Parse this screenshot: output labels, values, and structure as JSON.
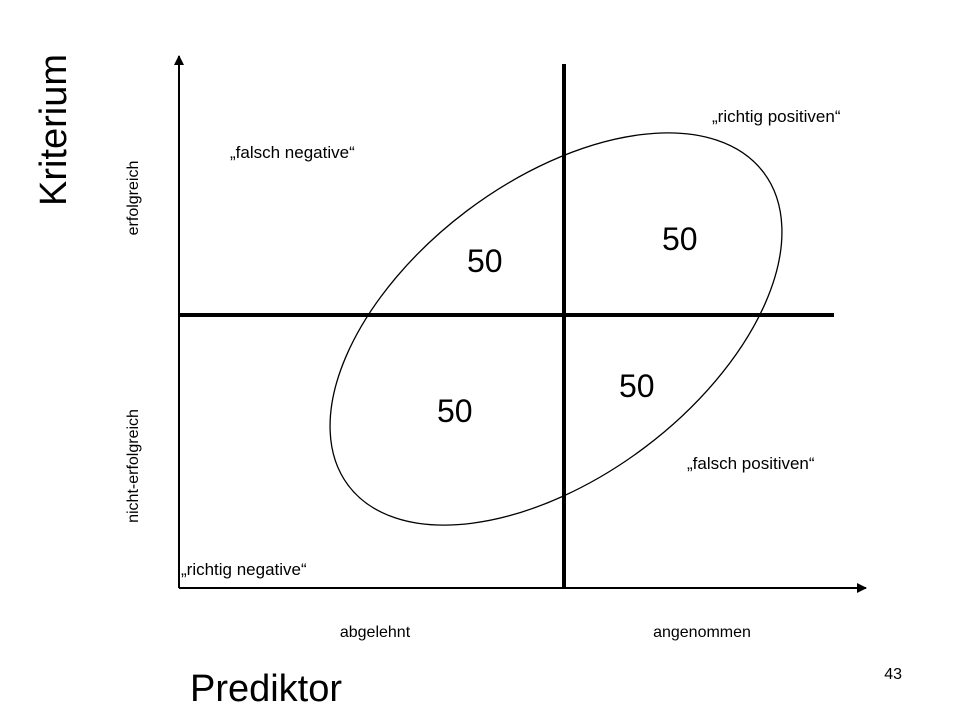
{
  "y_axis": {
    "title": "Kriterium",
    "upper_label": "erfolgreich",
    "lower_label": "nicht-erfolgreich"
  },
  "x_axis": {
    "title": "Prediktor",
    "left_label": "abgelehnt",
    "right_label": "angenommen"
  },
  "quadrants": {
    "top_left": {
      "name": "„falsch negative“",
      "count": "50"
    },
    "top_right": {
      "name": "„richtig positiven“",
      "count": "50"
    },
    "bottom_left": {
      "name": "„richtig negative“",
      "count": "50"
    },
    "bottom_right": {
      "name": "„falsch positiven“",
      "count": "50"
    }
  },
  "page_number": "43"
}
